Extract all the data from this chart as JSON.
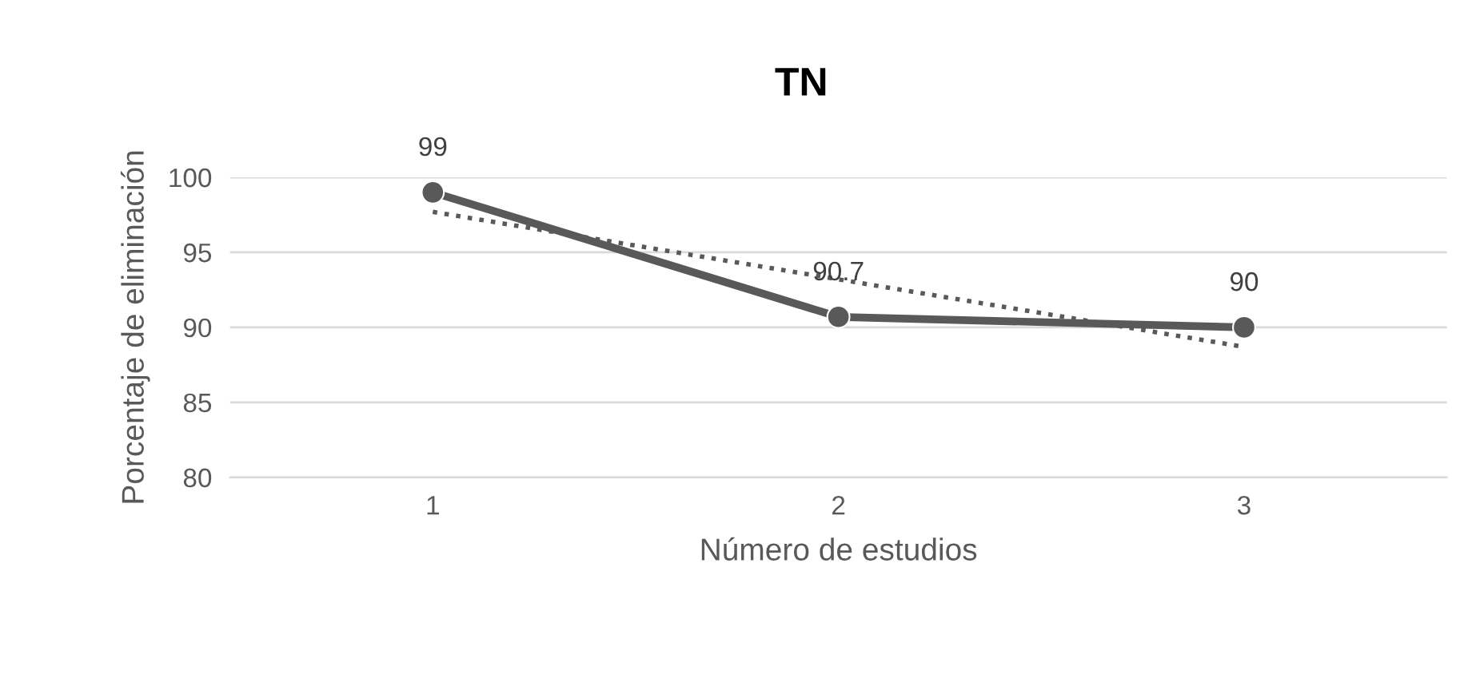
{
  "chart_data": {
    "type": "line",
    "title": "TN",
    "xlabel": "Número de estudios",
    "ylabel": "Porcentaje de eliminación",
    "categories": [
      "1",
      "2",
      "3"
    ],
    "series": [
      {
        "color": "#595959",
        "values": [
          99,
          90.7,
          90
        ],
        "value_labels": [
          "99",
          "90.7",
          "90"
        ],
        "marker": "circle",
        "line_style": "solid"
      },
      {
        "color": "#595959",
        "values": [
          97.7,
          93.2,
          88.7
        ],
        "marker": "none",
        "line_style": "dotted"
      }
    ],
    "ylim": [
      80,
      100
    ],
    "yticks": [
      80,
      85,
      90,
      95,
      100
    ],
    "grid": "y",
    "legend": false
  }
}
